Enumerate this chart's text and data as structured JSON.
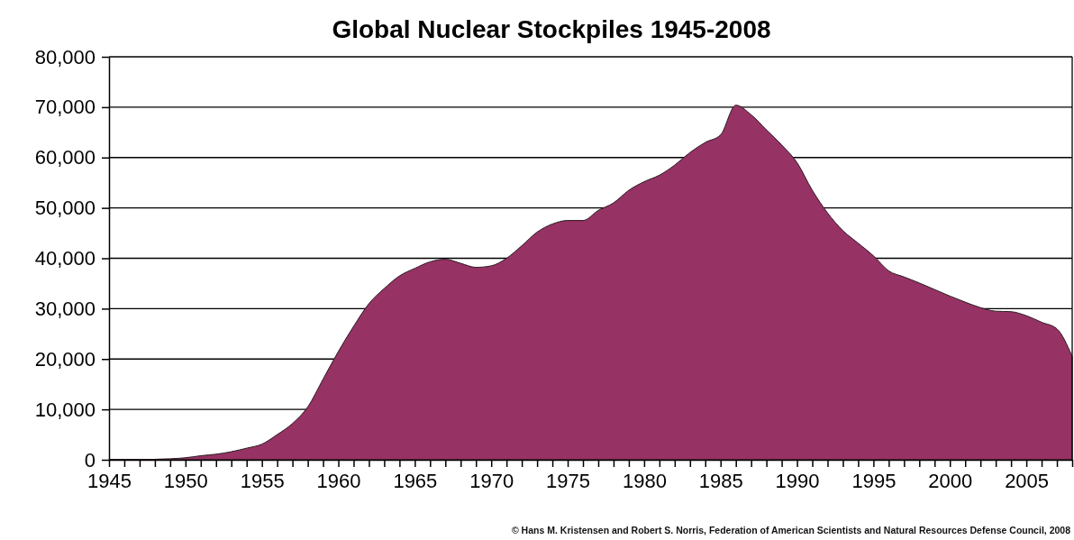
{
  "chart_data": {
    "type": "area",
    "title": "Global Nuclear Stockpiles 1945-2008",
    "x": [
      1945,
      1946,
      1947,
      1948,
      1949,
      1950,
      1951,
      1952,
      1953,
      1954,
      1955,
      1956,
      1957,
      1958,
      1959,
      1960,
      1961,
      1962,
      1963,
      1964,
      1965,
      1966,
      1967,
      1968,
      1969,
      1970,
      1971,
      1972,
      1973,
      1974,
      1975,
      1976,
      1977,
      1978,
      1979,
      1980,
      1981,
      1982,
      1983,
      1984,
      1985,
      1986,
      1987,
      1988,
      1989,
      1990,
      1991,
      1992,
      1993,
      1994,
      1995,
      1996,
      1997,
      1998,
      1999,
      2000,
      2001,
      2002,
      2003,
      2004,
      2005,
      2006,
      2007,
      2008
    ],
    "series": [
      {
        "color": "#963264",
        "values": [
          0,
          0,
          0,
          100,
          200,
          400,
          800,
          1100,
          1600,
          2300,
          3100,
          5000,
          7200,
          10500,
          16000,
          21500,
          26500,
          31000,
          34000,
          36500,
          38000,
          39300,
          39800,
          39000,
          38200,
          38500,
          40000,
          42500,
          45200,
          46800,
          47500,
          47500,
          49500,
          51000,
          53500,
          55200,
          56500,
          58500,
          61000,
          63000,
          64500,
          70400,
          68500,
          65500,
          62500,
          59000,
          53500,
          49000,
          45500,
          43000,
          40500,
          37500,
          36300,
          35100,
          33800,
          32500,
          31300,
          30200,
          29500,
          29400,
          28600,
          27300,
          26000,
          20500
        ]
      }
    ],
    "xlim": [
      1945,
      2008
    ],
    "xticks": [
      1945,
      {
        "value": 1946,
        "label": null
      },
      {
        "value": 1947,
        "label": null
      },
      {
        "value": 1948,
        "label": null
      },
      {
        "value": 1949,
        "label": null
      },
      1950,
      {
        "value": 1951,
        "label": null
      },
      {
        "value": 1952,
        "label": null
      },
      {
        "value": 1953,
        "label": null
      },
      {
        "value": 1954,
        "label": null
      },
      1955,
      {
        "value": 1956,
        "label": null
      },
      {
        "value": 1957,
        "label": null
      },
      {
        "value": 1958,
        "label": null
      },
      {
        "value": 1959,
        "label": null
      },
      1960,
      {
        "value": 1961,
        "label": null
      },
      {
        "value": 1962,
        "label": null
      },
      {
        "value": 1963,
        "label": null
      },
      {
        "value": 1964,
        "label": null
      },
      1965,
      {
        "value": 1966,
        "label": null
      },
      {
        "value": 1967,
        "label": null
      },
      {
        "value": 1968,
        "label": null
      },
      {
        "value": 1969,
        "label": null
      },
      1970,
      {
        "value": 1971,
        "label": null
      },
      {
        "value": 1972,
        "label": null
      },
      {
        "value": 1973,
        "label": null
      },
      {
        "value": 1974,
        "label": null
      },
      1975,
      {
        "value": 1976,
        "label": null
      },
      {
        "value": 1977,
        "label": null
      },
      {
        "value": 1978,
        "label": null
      },
      {
        "value": 1979,
        "label": null
      },
      1980,
      {
        "value": 1981,
        "label": null
      },
      {
        "value": 1982,
        "label": null
      },
      {
        "value": 1983,
        "label": null
      },
      {
        "value": 1984,
        "label": null
      },
      1985,
      {
        "value": 1986,
        "label": null
      },
      {
        "value": 1987,
        "label": null
      },
      {
        "value": 1988,
        "label": null
      },
      {
        "value": 1989,
        "label": null
      },
      1990,
      {
        "value": 1991,
        "label": null
      },
      {
        "value": 1992,
        "label": null
      },
      {
        "value": 1993,
        "label": null
      },
      {
        "value": 1994,
        "label": null
      },
      1995,
      {
        "value": 1996,
        "label": null
      },
      {
        "value": 1997,
        "label": null
      },
      {
        "value": 1998,
        "label": null
      },
      {
        "value": 1999,
        "label": null
      },
      2000,
      {
        "value": 2001,
        "label": null
      },
      {
        "value": 2002,
        "label": null
      },
      {
        "value": 2003,
        "label": null
      },
      {
        "value": 2004,
        "label": null
      },
      2005,
      {
        "value": 2006,
        "label": null
      },
      {
        "value": 2007,
        "label": null
      },
      {
        "value": 2008,
        "label": null
      }
    ],
    "ylim": [
      0,
      80000
    ],
    "yticks": [
      {
        "value": 0,
        "label": "0"
      },
      {
        "value": 10000,
        "label": "10,000"
      },
      {
        "value": 20000,
        "label": "20,000"
      },
      {
        "value": 30000,
        "label": "30,000"
      },
      {
        "value": 40000,
        "label": "40,000"
      },
      {
        "value": 50000,
        "label": "50,000"
      },
      {
        "value": 60000,
        "label": "60,000"
      },
      {
        "value": 70000,
        "label": "70,000"
      },
      {
        "value": 80000,
        "label": "80,000"
      }
    ],
    "grid": "y",
    "annotations": [
      "© Hans M. Kristensen and Robert S. Norris, Federation of American Scientists and Natural Resources Defense Council, 2008"
    ]
  }
}
